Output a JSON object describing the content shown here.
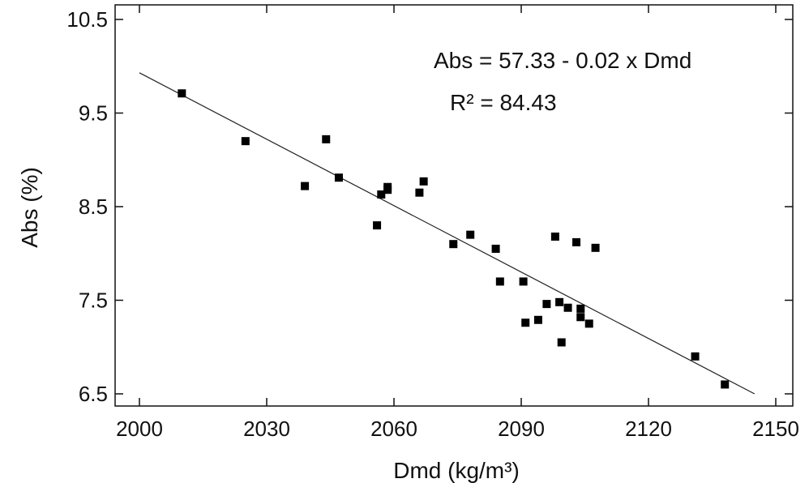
{
  "chart_data": {
    "type": "scatter",
    "xlabel": "Dmd (kg/m³)",
    "ylabel": "Abs (%)",
    "xlim": [
      2000,
      2150
    ],
    "ylim": [
      6.5,
      10.5
    ],
    "xticks": [
      "2000",
      "2030",
      "2060",
      "2090",
      "2120",
      "2150"
    ],
    "yticks": [
      "6.5",
      "7.5",
      "8.5",
      "9.5",
      "10.5"
    ],
    "grid": false,
    "legend": "none",
    "annotations": {
      "equation": "Abs = 57.33 - 0.02 x Dmd",
      "r2": "R² = 84.43"
    },
    "fit_line": {
      "x": [
        2000,
        2145
      ],
      "y": [
        9.93,
        6.5
      ]
    },
    "series": [
      {
        "marker": "square",
        "color": "#000000",
        "points": [
          [
            2010,
            9.71
          ],
          [
            2025,
            9.2
          ],
          [
            2039,
            8.72
          ],
          [
            2044,
            9.22
          ],
          [
            2047,
            8.81
          ],
          [
            2056,
            8.3
          ],
          [
            2057,
            8.63
          ],
          [
            2058.5,
            8.68
          ],
          [
            2058.5,
            8.71
          ],
          [
            2066,
            8.65
          ],
          [
            2067,
            8.77
          ],
          [
            2074,
            8.1
          ],
          [
            2078,
            8.2
          ],
          [
            2084,
            8.05
          ],
          [
            2085,
            7.7
          ],
          [
            2090.5,
            7.7
          ],
          [
            2091,
            7.26
          ],
          [
            2094,
            7.29
          ],
          [
            2096,
            7.46
          ],
          [
            2098,
            8.18
          ],
          [
            2099,
            7.48
          ],
          [
            2099.5,
            7.05
          ],
          [
            2101,
            7.42
          ],
          [
            2103,
            8.12
          ],
          [
            2104,
            7.41
          ],
          [
            2104,
            7.32
          ],
          [
            2106,
            7.25
          ],
          [
            2107.5,
            8.06
          ],
          [
            2131,
            6.9
          ],
          [
            2138,
            6.6
          ]
        ]
      }
    ]
  }
}
